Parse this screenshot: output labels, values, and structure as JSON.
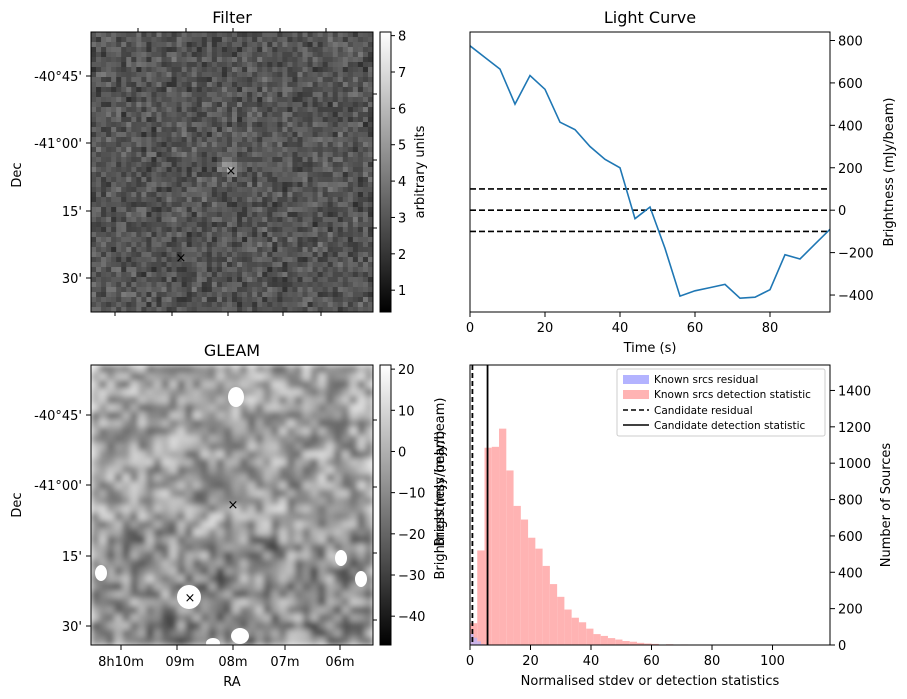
{
  "panels": {
    "filter": {
      "title": "Filter",
      "ylabel": "Dec",
      "yticks": [
        "-40°45'",
        "-41°00'",
        "15'",
        "30'"
      ],
      "colorbar_label": "arbitrary units",
      "colorbar_ticks": [
        "1",
        "2",
        "3",
        "4",
        "5",
        "6",
        "7",
        "8"
      ],
      "colorbar_range": [
        0.4,
        8.1
      ],
      "markers": [
        {
          "name": "candidate",
          "color": "#ff0000",
          "symbol": "×"
        },
        {
          "name": "known-source",
          "color": "#0000ff",
          "symbol": "×"
        }
      ]
    },
    "gleam": {
      "title": "GLEAM",
      "ylabel": "Dec",
      "xlabel": "RA",
      "yticks": [
        "-40°45'",
        "-41°00'",
        "15'",
        "30'"
      ],
      "xticks": [
        "8h10m",
        "09m",
        "08m",
        "07m",
        "06m"
      ],
      "colorbar_label": "Brightness (mJy/beam)",
      "colorbar_ticks": [
        "20",
        "10",
        "0",
        "−10",
        "−20",
        "−30",
        "−40"
      ],
      "colorbar_range": [
        -47,
        21
      ],
      "markers": [
        {
          "name": "candidate",
          "color": "#ff0000",
          "symbol": "×"
        },
        {
          "name": "known-source",
          "color": "#0000ff",
          "symbol": "×"
        }
      ]
    },
    "light_curve": {
      "title": "Light Curve",
      "xlabel": "Time (s)",
      "ylabel": "Brightness (mJy/beam)",
      "xticks": [
        "0",
        "20",
        "40",
        "60",
        "80"
      ],
      "yticks": [
        "800",
        "600",
        "400",
        "200",
        "0",
        "−200",
        "−400"
      ]
    },
    "histogram": {
      "xlabel": "Normalised stdev or detection statistics",
      "left_ylabel": "Brightness (mJy/beam)",
      "right_ylabel": "Number of Sources",
      "xticks": [
        "0",
        "20",
        "40",
        "60",
        "80",
        "100"
      ],
      "yticks": [
        "1400",
        "1200",
        "1000",
        "800",
        "600",
        "400",
        "200",
        "0"
      ],
      "legend": [
        {
          "label": "Known srcs residual",
          "style": "patch",
          "color": "#b3b3ff"
        },
        {
          "label": "Known srcs detection statistic",
          "style": "patch",
          "color": "#ffb3b3"
        },
        {
          "label": "Candidate residual",
          "style": "dashed",
          "color": "#000000"
        },
        {
          "label": "Candidate detection statistic",
          "style": "solid",
          "color": "#000000"
        }
      ]
    }
  },
  "chart_data": [
    {
      "type": "line",
      "title": "Light Curve",
      "xlabel": "Time (s)",
      "ylabel": "Brightness (mJy/beam)",
      "xlim": [
        0,
        96
      ],
      "ylim": [
        -480,
        840
      ],
      "x": [
        0,
        4,
        8,
        12,
        16,
        20,
        24,
        28,
        32,
        36,
        40,
        44,
        48,
        52,
        56,
        60,
        64,
        68,
        72,
        76,
        80,
        84,
        88,
        92,
        96
      ],
      "series": [
        {
          "values": [
            775,
            720,
            665,
            500,
            635,
            570,
            415,
            380,
            300,
            240,
            200,
            -40,
            15,
            -180,
            -405,
            -380,
            -365,
            -350,
            -415,
            -410,
            -375,
            -210,
            -230,
            -160,
            -90
          ],
          "color": "#1f77b4"
        }
      ],
      "hlines": [
        {
          "y": 100,
          "style": "dashed",
          "color": "#000000"
        },
        {
          "y": 0,
          "style": "dashed",
          "color": "#000000"
        },
        {
          "y": -100,
          "style": "dashed",
          "color": "#000000"
        }
      ],
      "grid": false
    },
    {
      "type": "bar",
      "xlabel": "Normalised stdev or detection statistics",
      "ylabel": "Number of Sources",
      "xlim": [
        0,
        119
      ],
      "ylim": [
        0,
        1540
      ],
      "bin_width": 2.4,
      "series": [
        {
          "name": "Known srcs detection statistic",
          "color": "#ffb3b3",
          "bin_starts": [
            0,
            2.4,
            4.8,
            7.2,
            9.6,
            12.0,
            14.4,
            16.8,
            19.2,
            21.6,
            24.0,
            26.4,
            28.8,
            31.2,
            33.6,
            36.0,
            38.4,
            40.8,
            43.2,
            45.6,
            48.0,
            50.4,
            52.8,
            55.2,
            57.6,
            60.0,
            64.8,
            69.6,
            74.4,
            79.2,
            84.0,
            88.8,
            93.6,
            98.4,
            103.2,
            108.0
          ],
          "values": [
            120,
            520,
            1085,
            1090,
            1190,
            960,
            765,
            690,
            590,
            530,
            435,
            335,
            265,
            195,
            150,
            125,
            90,
            60,
            50,
            38,
            30,
            22,
            18,
            12,
            8,
            6,
            4,
            3,
            2,
            2,
            1,
            1,
            1,
            1,
            1,
            1
          ]
        },
        {
          "name": "Known srcs residual",
          "color": "#b3b3ff",
          "bin_starts": [
            0,
            1.2,
            2.4,
            3.6
          ],
          "values": [
            60,
            40,
            20,
            5
          ]
        }
      ],
      "vlines": [
        {
          "name": "Candidate residual",
          "x": 0.8,
          "style": "dashed",
          "color": "#000000"
        },
        {
          "name": "Candidate detection statistic",
          "x": 5.8,
          "style": "solid",
          "color": "#000000"
        }
      ],
      "legend_position": "top-right",
      "grid": false
    }
  ]
}
